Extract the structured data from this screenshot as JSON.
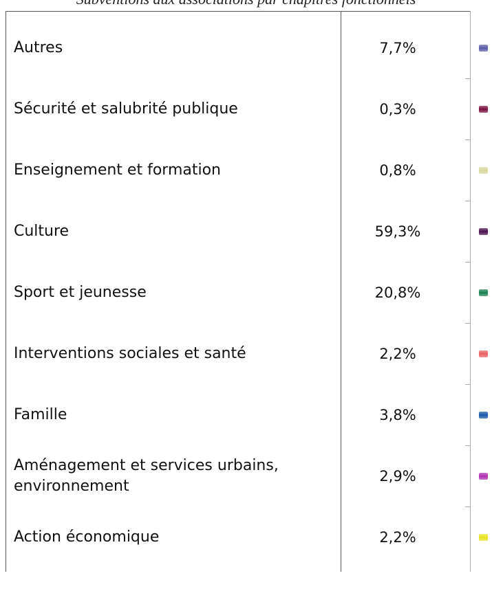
{
  "header": {
    "title": "Subventions aux associations par chapitres fonctionnels"
  },
  "table": {
    "rows": [
      {
        "label": "Autres",
        "value": "7,7%",
        "color": "#5a5aa8"
      },
      {
        "label": "Sécurité et salubrité publique",
        "value": "0,3%",
        "color": "#7a1040"
      },
      {
        "label": "Enseignement et formation",
        "value": "0,8%",
        "color": "#d8d8a0"
      },
      {
        "label": "Culture",
        "value": "59,3%",
        "color": "#4a1050"
      },
      {
        "label": "Sport et jeunesse",
        "value": "20,8%",
        "color": "#1a8050"
      },
      {
        "label": "Interventions sociales et santé",
        "value": "2,2%",
        "color": "#e86060"
      },
      {
        "label": "Famille",
        "value": "3,8%",
        "color": "#1858a8"
      },
      {
        "label": "Aménagement et services urbains, environnement",
        "value": "2,9%",
        "color": "#b030b0"
      },
      {
        "label": "Action économique",
        "value": "2,2%",
        "color": "#e8e020"
      }
    ]
  }
}
